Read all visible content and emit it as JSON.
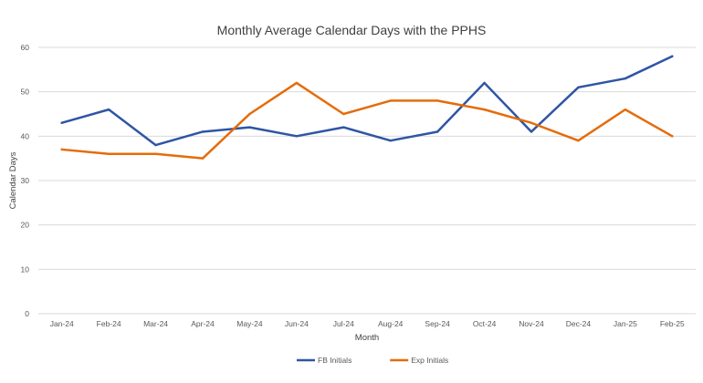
{
  "chart_data": {
    "type": "line",
    "title": "Monthly Average Calendar Days with the PPHS",
    "xlabel": "Month",
    "ylabel": "Calendar Days",
    "ylim": [
      0,
      60
    ],
    "yticks": [
      0,
      10,
      20,
      30,
      40,
      50,
      60
    ],
    "grid": true,
    "legend_position": "bottom",
    "categories": [
      "Jan-24",
      "Feb-24",
      "Mar-24",
      "Apr-24",
      "May-24",
      "Jun-24",
      "Jul-24",
      "Aug-24",
      "Sep-24",
      "Oct-24",
      "Nov-24",
      "Dec-24",
      "Jan-25",
      "Feb-25"
    ],
    "series": [
      {
        "name": "FB Initials",
        "color": "#2f55a4",
        "values": [
          43,
          46,
          38,
          41,
          42,
          40,
          42,
          39,
          41,
          52,
          41,
          51,
          53,
          58
        ]
      },
      {
        "name": "Exp Initials",
        "color": "#e46c0a",
        "values": [
          37,
          36,
          36,
          35,
          45,
          52,
          45,
          48,
          48,
          46,
          43,
          39,
          46,
          40
        ]
      }
    ]
  }
}
